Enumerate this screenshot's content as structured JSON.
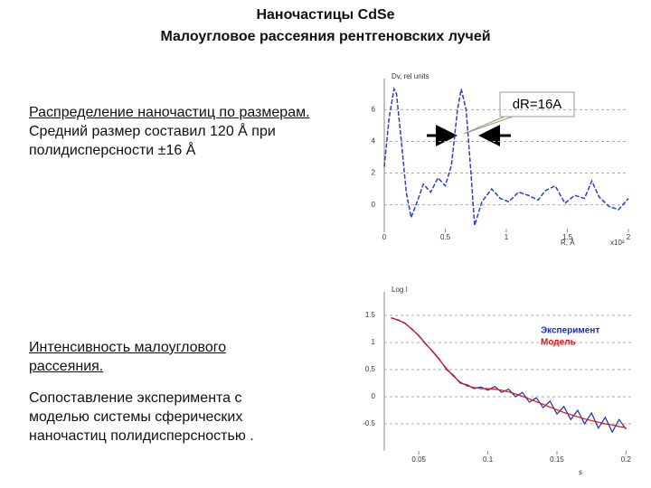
{
  "slide": {
    "title": "Наночастицы CdSe",
    "subtitle": "Малоугловое рассеяния рентгеновских лучей",
    "block1": {
      "heading": "Распределение наночастиц по размерам.",
      "text": "Средний размер составил 120 Å при полидисперсности ±16 Å"
    },
    "block2": {
      "heading": "Интенсивность малоуглового рассеяния.",
      "text": "Сопоставление эксперимента с моделью системы сферических наночастиц полидисперсностью ."
    }
  },
  "chart_data": [
    {
      "type": "line",
      "ylabel": "Dv, rel units",
      "xlabel": "R, Å",
      "xunit": "x10²",
      "annotation": "dR=16A",
      "x": [
        0,
        0.04,
        0.08,
        0.1,
        0.14,
        0.18,
        0.22,
        0.27,
        0.32,
        0.38,
        0.44,
        0.5,
        0.55,
        0.6,
        0.63,
        0.67,
        0.71,
        0.74,
        0.8,
        0.88,
        0.95,
        1.02,
        1.1,
        1.18,
        1.26,
        1.32,
        1.4,
        1.48,
        1.56,
        1.64,
        1.7,
        1.76,
        1.84,
        1.92,
        2.0
      ],
      "series": [
        {
          "color": "#2b3fc0",
          "values": [
            2.4,
            5.5,
            7.3,
            7.0,
            4.0,
            0.8,
            -0.8,
            0.2,
            1.3,
            0.8,
            1.7,
            1.2,
            2.5,
            6.0,
            7.3,
            6.0,
            2.0,
            -1.3,
            0.2,
            1.0,
            0.4,
            0.2,
            0.8,
            0.6,
            0.3,
            0.9,
            1.2,
            0.1,
            0.6,
            0.4,
            1.5,
            0.5,
            -0.1,
            -0.3,
            0.4
          ]
        }
      ],
      "xlim": [
        0,
        2
      ],
      "ylim": [
        -1.5,
        7.5
      ],
      "xticks": [
        0,
        0.5,
        1,
        1.5,
        2
      ],
      "yticks": [
        0,
        2,
        4,
        6
      ],
      "grid": true
    },
    {
      "type": "line",
      "ylabel": "Log I",
      "xlabel": "s",
      "x": [
        0.03,
        0.035,
        0.04,
        0.045,
        0.05,
        0.055,
        0.06,
        0.065,
        0.07,
        0.075,
        0.08,
        0.085,
        0.09,
        0.095,
        0.1,
        0.105,
        0.11,
        0.115,
        0.12,
        0.125,
        0.13,
        0.135,
        0.14,
        0.145,
        0.15,
        0.155,
        0.16,
        0.165,
        0.17,
        0.175,
        0.18,
        0.185,
        0.19,
        0.195,
        0.2
      ],
      "series": [
        {
          "name": "Эксперимент",
          "color": "#1a2fb0",
          "values": [
            1.46,
            1.41,
            1.36,
            1.24,
            1.13,
            0.97,
            0.84,
            0.69,
            0.5,
            0.4,
            0.25,
            0.22,
            0.15,
            0.18,
            0.12,
            0.19,
            0.08,
            0.14,
            0,
            0.08,
            -0.1,
            -0.02,
            -0.2,
            -0.08,
            -0.32,
            -0.18,
            -0.42,
            -0.25,
            -0.5,
            -0.3,
            -0.58,
            -0.38,
            -0.65,
            -0.42,
            -0.6
          ]
        },
        {
          "name": "Модель",
          "color": "#e01010",
          "values": [
            1.45,
            1.42,
            1.35,
            1.25,
            1.12,
            0.98,
            0.83,
            0.68,
            0.52,
            0.38,
            0.27,
            0.2,
            0.17,
            0.15,
            0.15,
            0.14,
            0.12,
            0.09,
            0.05,
            0.01,
            -0.04,
            -0.09,
            -0.14,
            -0.19,
            -0.24,
            -0.29,
            -0.33,
            -0.37,
            -0.41,
            -0.44,
            -0.47,
            -0.5,
            -0.52,
            -0.55,
            -0.57
          ]
        }
      ],
      "xlim": [
        0.025,
        0.205
      ],
      "ylim": [
        -1,
        1.8
      ],
      "xticks": [
        0.05,
        0.1,
        0.15,
        0.2
      ],
      "yticks": [
        -0.5,
        0,
        0.5,
        1,
        1.5
      ],
      "grid": true
    }
  ]
}
